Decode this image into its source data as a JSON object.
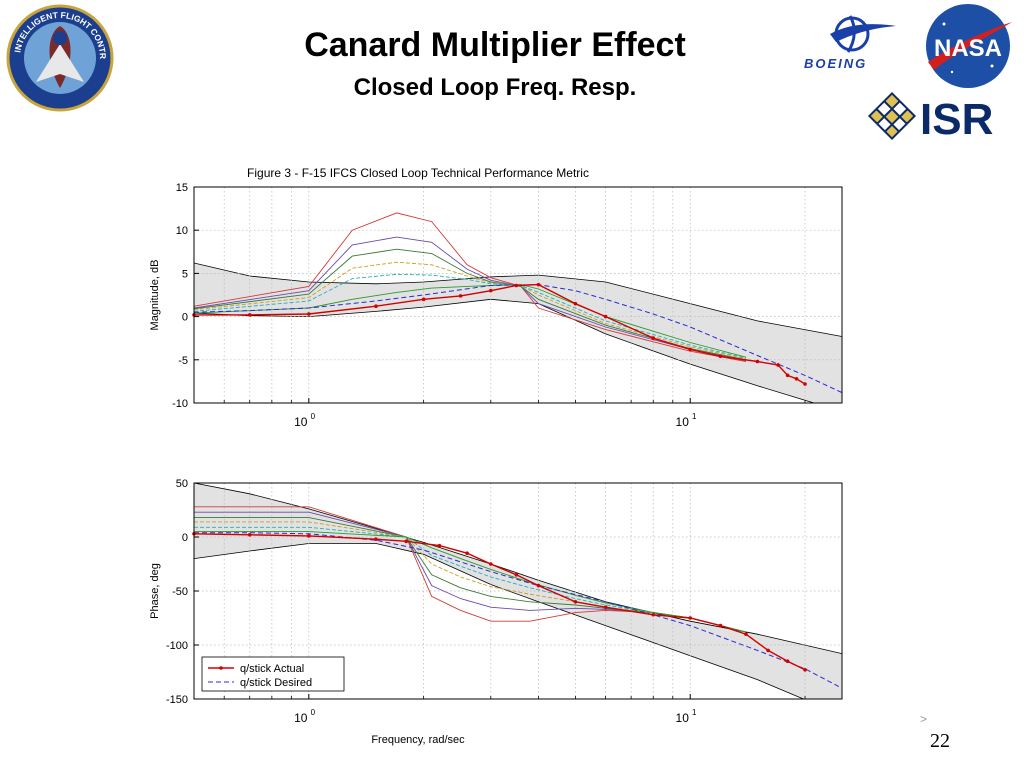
{
  "slide": {
    "title": "Canard Multiplier Effect",
    "subtitle": "Closed Loop Freq. Resp.",
    "page_number": "22",
    "nav_mark": ">"
  },
  "logos": {
    "ifcs": {
      "name": "ifcs-badge-logo",
      "text_top": "INTELLIGENT FLIGHT CONTROL SYSTEM"
    },
    "boeing": {
      "name": "boeing-logo",
      "text": "BOEING"
    },
    "nasa": {
      "name": "nasa-logo",
      "text": "NASA"
    },
    "isr": {
      "name": "isr-logo",
      "text": "ISR"
    }
  },
  "colors": {
    "band_fill": "#e2e2e2",
    "actual": "#d40000",
    "desired": "#2a2ad6",
    "grid": "#b8b8b8"
  },
  "chart_data": [
    {
      "type": "line",
      "title": "Figure 3 - F-15 IFCS Closed Loop Technical Performance Metric",
      "xlabel": "",
      "ylabel": "Magnitude, dB",
      "x_scale": "log",
      "xlim": [
        0.5,
        25
      ],
      "ylim": [
        -10,
        15
      ],
      "yticks": [
        -10,
        -5,
        0,
        5,
        10,
        15
      ],
      "xticks": [
        {
          "value": 1,
          "label": "10",
          "exp": "0"
        },
        {
          "value": 10,
          "label": "10",
          "exp": "1"
        }
      ],
      "grid": true,
      "band": {
        "x": [
          0.5,
          0.7,
          1,
          1.5,
          2,
          3,
          4,
          6,
          10,
          15,
          25
        ],
        "upper": [
          6.2,
          4.7,
          4.0,
          3.8,
          4.0,
          4.6,
          4.8,
          4.0,
          1.5,
          -0.5,
          -2.3
        ],
        "lower": [
          0.4,
          0.1,
          0.0,
          0.6,
          1.1,
          2.0,
          1.5,
          -2.0,
          -5.5,
          -8.0,
          -11.0
        ]
      },
      "series": [
        {
          "name": "q/stick Actual",
          "style": "actual",
          "x": [
            0.5,
            0.7,
            1,
            1.5,
            2,
            2.5,
            3,
            3.5,
            4,
            5,
            6,
            8,
            10,
            12,
            15,
            17,
            18,
            19,
            20
          ],
          "y": [
            0.2,
            0.2,
            0.3,
            1.2,
            2.0,
            2.4,
            3.0,
            3.6,
            3.7,
            1.5,
            0.0,
            -2.5,
            -3.8,
            -4.6,
            -5.2,
            -5.6,
            -6.8,
            -7.2,
            -7.8
          ]
        },
        {
          "name": "q/stick Desired",
          "style": "desired",
          "x": [
            0.5,
            0.7,
            1,
            1.5,
            2,
            3,
            4,
            5,
            6,
            8,
            10,
            15,
            20,
            25
          ],
          "y": [
            0.5,
            0.7,
            1.0,
            1.8,
            2.5,
            3.6,
            3.7,
            3.0,
            2.0,
            0.3,
            -1.2,
            -4.5,
            -6.8,
            -8.8
          ]
        },
        {
          "name": "",
          "style": "family",
          "color": "#d43a3a",
          "x": [
            0.5,
            1,
            1.3,
            1.7,
            2.1,
            2.6,
            3,
            3.6,
            4,
            6,
            10,
            14
          ],
          "y": [
            1.2,
            3.5,
            10.0,
            12.0,
            11.0,
            6.0,
            4.5,
            3.5,
            1.0,
            -1.5,
            -4.0,
            -5.2
          ]
        },
        {
          "name": "",
          "style": "family",
          "color": "#6a4ab0",
          "x": [
            0.5,
            1,
            1.3,
            1.7,
            2.1,
            2.6,
            3,
            3.6,
            4,
            6,
            10,
            14
          ],
          "y": [
            1.0,
            3.0,
            8.3,
            9.2,
            8.6,
            5.5,
            4.2,
            3.5,
            1.5,
            -1.2,
            -3.8,
            -5.1
          ]
        },
        {
          "name": "",
          "style": "family",
          "color": "#3a7a3a",
          "x": [
            0.5,
            1,
            1.3,
            1.7,
            2.1,
            2.6,
            3,
            3.6,
            4,
            6,
            10,
            14
          ],
          "y": [
            0.9,
            2.6,
            7.0,
            7.8,
            7.3,
            5.0,
            4.0,
            3.5,
            2.0,
            -1.0,
            -3.7,
            -5.0
          ]
        },
        {
          "name": "",
          "style": "family",
          "color": "#c8a020",
          "x": [
            0.5,
            1,
            1.3,
            1.7,
            2.1,
            2.6,
            3,
            3.6,
            4,
            6,
            10,
            14
          ],
          "y": [
            0.8,
            2.2,
            5.6,
            6.3,
            6.0,
            4.7,
            3.9,
            3.6,
            2.5,
            -0.8,
            -3.5,
            -4.9
          ]
        },
        {
          "name": "",
          "style": "family",
          "color": "#20b0c0",
          "x": [
            0.5,
            1,
            1.3,
            1.7,
            2.1,
            2.6,
            3,
            3.6,
            4,
            6,
            10,
            14
          ],
          "y": [
            0.6,
            1.8,
            4.4,
            4.9,
            4.8,
            4.3,
            3.8,
            3.6,
            2.8,
            -0.5,
            -3.3,
            -4.8
          ]
        },
        {
          "name": "",
          "style": "family",
          "color": "#2a9a2a",
          "x": [
            0.5,
            1,
            1.3,
            1.7,
            2.1,
            2.6,
            3,
            3.6,
            4,
            6,
            10,
            14
          ],
          "y": [
            0.4,
            1.0,
            2.0,
            2.8,
            3.3,
            3.5,
            3.6,
            3.7,
            3.2,
            0.0,
            -3.0,
            -4.7
          ]
        }
      ]
    },
    {
      "type": "line",
      "title": "",
      "xlabel": "Frequency, rad/sec",
      "ylabel": "Phase, deg",
      "x_scale": "log",
      "xlim": [
        0.5,
        25
      ],
      "ylim": [
        -150,
        50
      ],
      "yticks": [
        -150,
        -100,
        -50,
        0,
        50
      ],
      "xticks": [
        {
          "value": 1,
          "label": "10",
          "exp": "0"
        },
        {
          "value": 10,
          "label": "10",
          "exp": "1"
        }
      ],
      "grid": true,
      "legend": {
        "position": "bottom-left",
        "entries": [
          "q/stick Actual",
          "q/stick Desired"
        ]
      },
      "band": {
        "x": [
          0.5,
          0.7,
          1,
          1.5,
          2,
          3,
          4,
          6,
          10,
          15,
          25
        ],
        "upper": [
          50,
          40,
          26,
          8,
          -5,
          -25,
          -40,
          -60,
          -78,
          -90,
          -108
        ],
        "lower": [
          -20,
          -13,
          -6,
          -6,
          -16,
          -44,
          -60,
          -82,
          -110,
          -132,
          -165
        ]
      },
      "series": [
        {
          "name": "q/stick Actual",
          "style": "actual",
          "x": [
            0.5,
            0.7,
            1,
            1.5,
            1.8,
            2.2,
            2.6,
            3,
            3.5,
            4,
            5,
            6,
            8,
            10,
            12,
            14,
            16,
            18,
            20
          ],
          "y": [
            3,
            2,
            1,
            -2,
            -4,
            -8,
            -15,
            -25,
            -35,
            -45,
            -60,
            -65,
            -72,
            -75,
            -82,
            -90,
            -105,
            -115,
            -123
          ]
        },
        {
          "name": "q/stick Desired",
          "style": "desired",
          "x": [
            0.5,
            0.7,
            1,
            1.5,
            2,
            3,
            4,
            6,
            8,
            10,
            15,
            20,
            25
          ],
          "y": [
            4,
            4,
            3,
            -3,
            -12,
            -32,
            -45,
            -60,
            -72,
            -82,
            -105,
            -122,
            -140
          ]
        },
        {
          "name": "",
          "style": "family",
          "color": "#d43a3a",
          "x": [
            0.5,
            1,
            1.8,
            2.1,
            2.5,
            3,
            3.8,
            5,
            6,
            8,
            10,
            14
          ],
          "y": [
            28,
            28,
            0,
            -55,
            -68,
            -78,
            -78,
            -70,
            -68,
            -70,
            -75,
            -88
          ]
        },
        {
          "name": "",
          "style": "family",
          "color": "#6a4ab0",
          "x": [
            0.5,
            1,
            1.8,
            2.1,
            2.5,
            3,
            3.8,
            5,
            6,
            8,
            10,
            14
          ],
          "y": [
            23,
            23,
            0,
            -45,
            -57,
            -65,
            -68,
            -66,
            -67,
            -70,
            -75,
            -88
          ]
        },
        {
          "name": "",
          "style": "family",
          "color": "#3a7a3a",
          "x": [
            0.5,
            1,
            1.8,
            2.1,
            2.5,
            3,
            3.8,
            5,
            6,
            8,
            10,
            14
          ],
          "y": [
            18,
            18,
            0,
            -35,
            -47,
            -55,
            -60,
            -63,
            -66,
            -70,
            -75,
            -88
          ]
        },
        {
          "name": "",
          "style": "family",
          "color": "#c8a020",
          "x": [
            0.5,
            1,
            1.8,
            2.1,
            2.5,
            3,
            3.8,
            5,
            6,
            8,
            10,
            14
          ],
          "y": [
            14,
            14,
            0,
            -25,
            -37,
            -46,
            -53,
            -60,
            -65,
            -70,
            -75,
            -88
          ]
        },
        {
          "name": "",
          "style": "family",
          "color": "#20b0c0",
          "x": [
            0.5,
            1,
            1.8,
            2.1,
            2.5,
            3,
            3.8,
            5,
            6,
            8,
            10,
            14
          ],
          "y": [
            9,
            9,
            0,
            -17,
            -27,
            -37,
            -47,
            -57,
            -63,
            -70,
            -75,
            -88
          ]
        },
        {
          "name": "",
          "style": "family",
          "color": "#2a9a2a",
          "x": [
            0.5,
            1,
            1.8,
            2.1,
            2.5,
            3,
            3.8,
            5,
            6,
            8,
            10,
            14
          ],
          "y": [
            5,
            5,
            0,
            -10,
            -20,
            -30,
            -42,
            -54,
            -61,
            -70,
            -75,
            -88
          ]
        }
      ]
    }
  ]
}
